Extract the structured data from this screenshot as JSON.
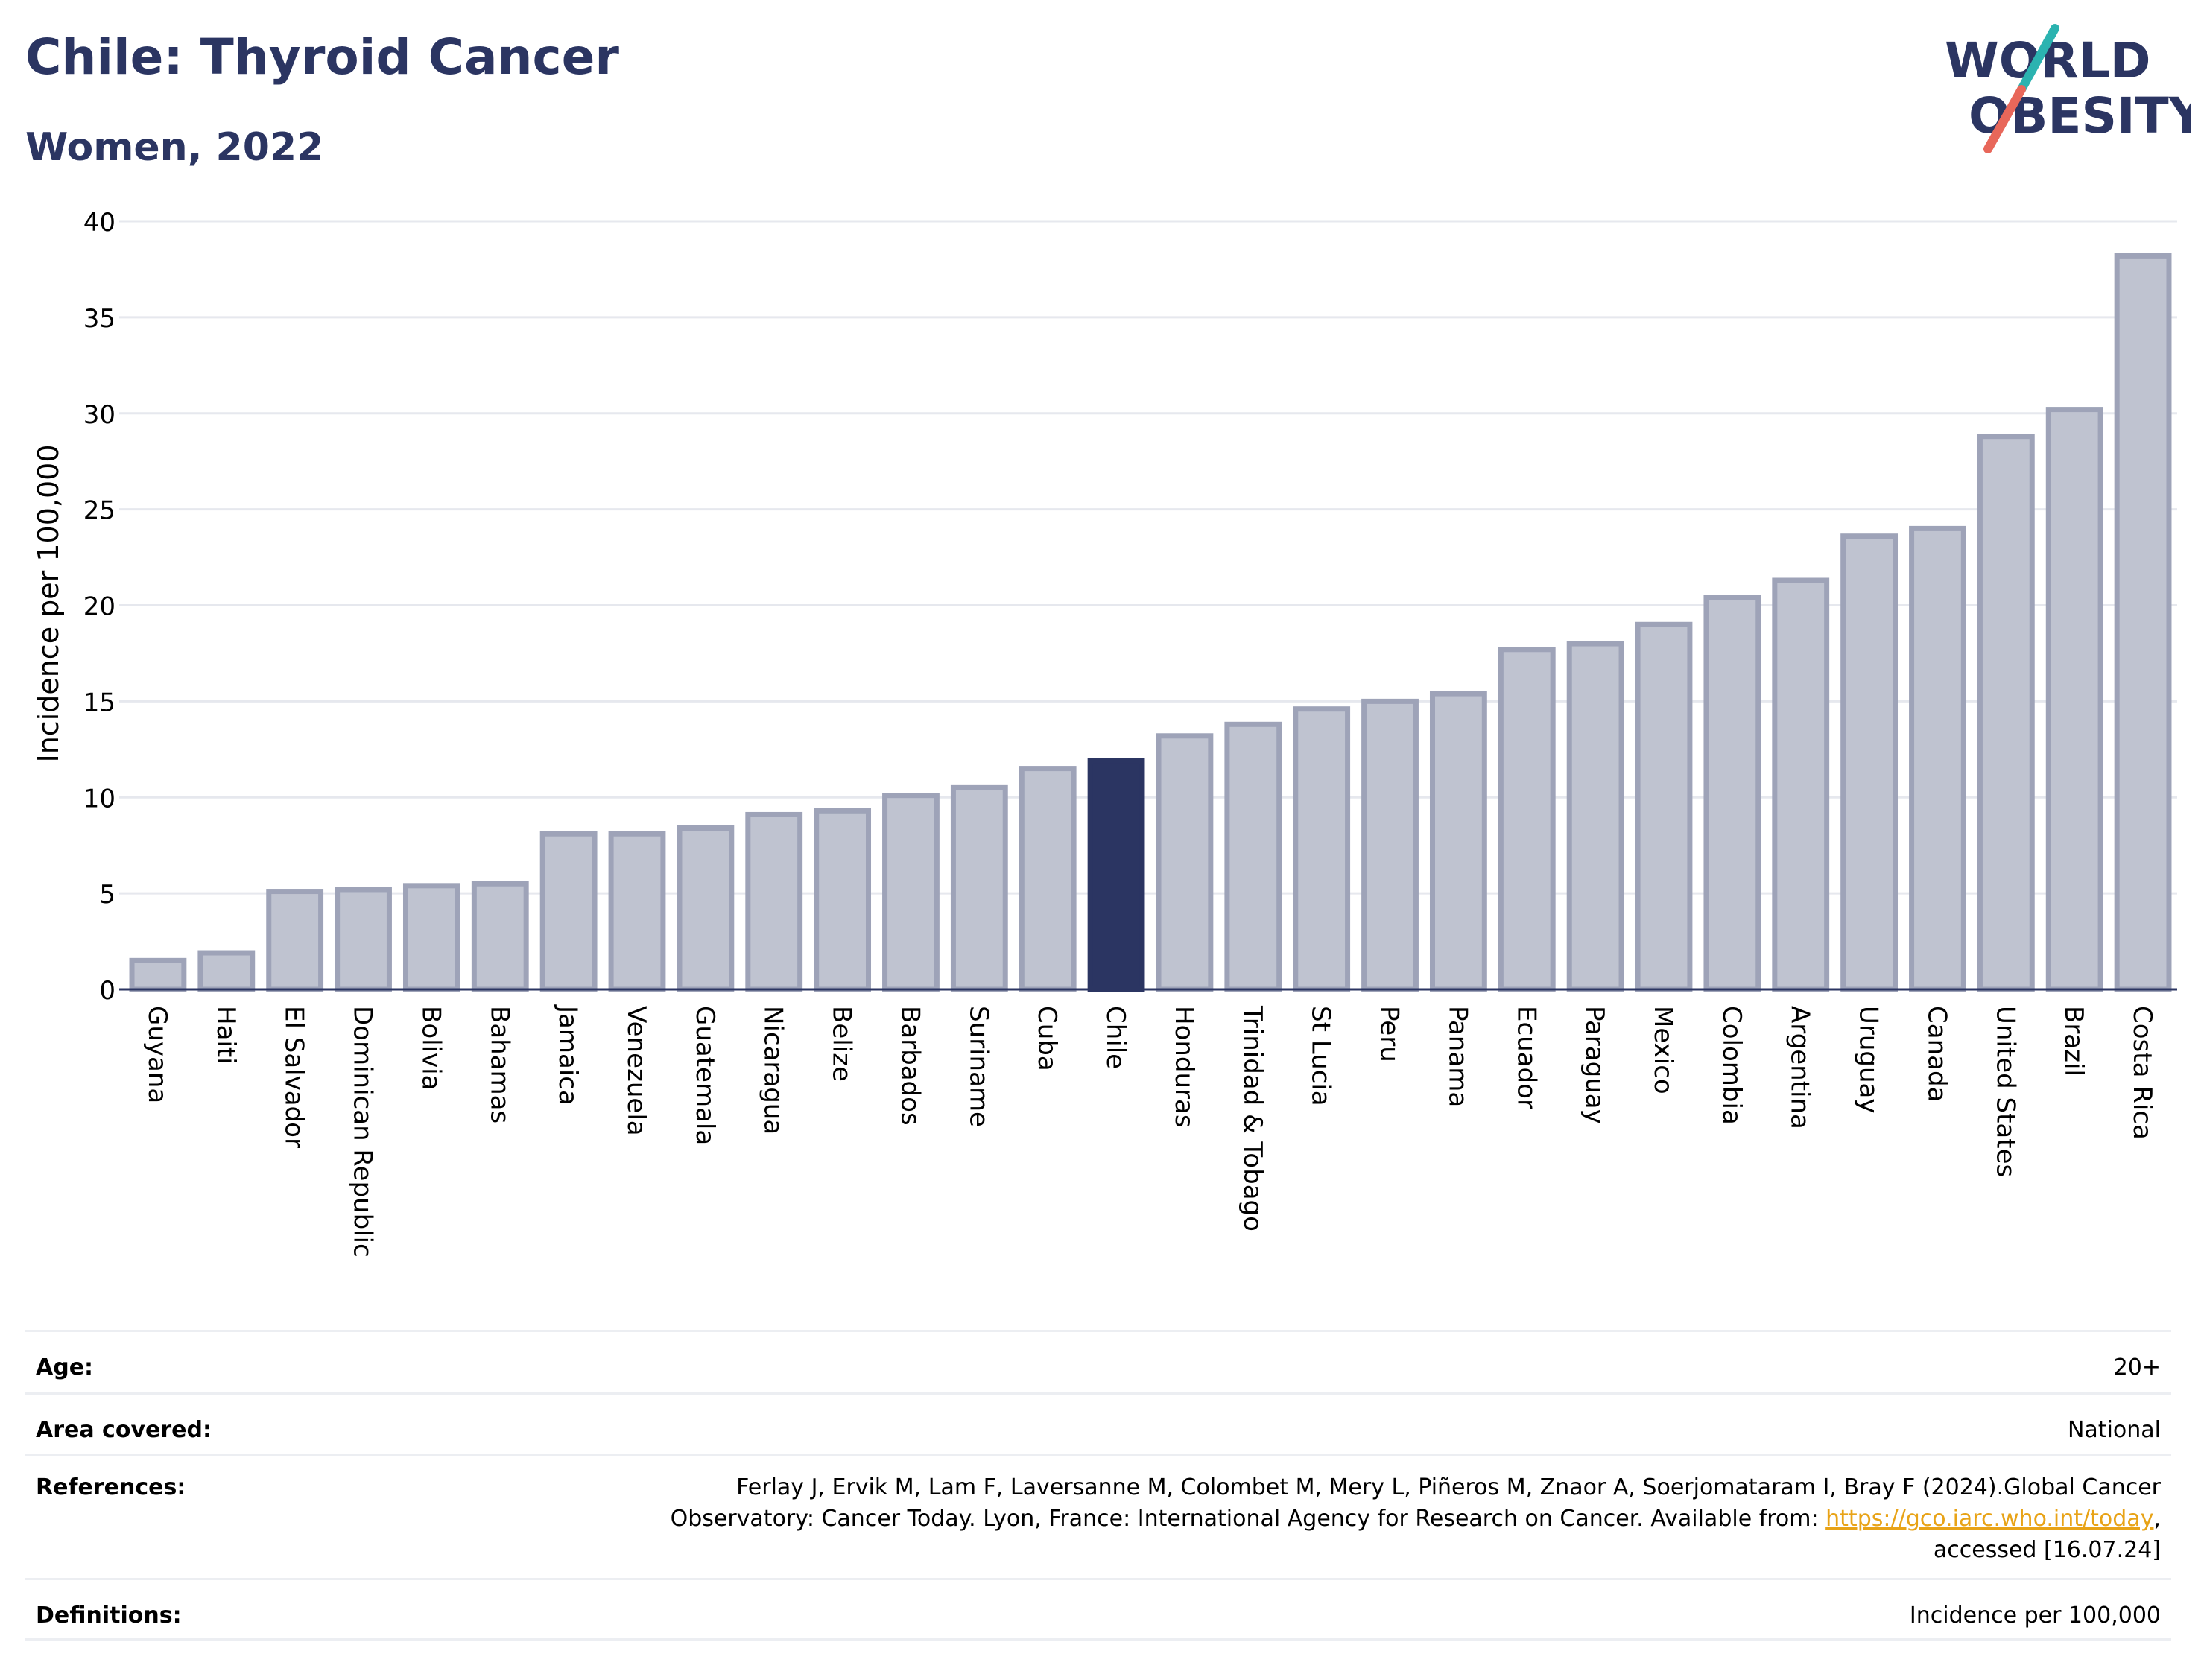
{
  "header": {
    "title": "Chile: Thyroid Cancer",
    "subtitle": "Women, 2022",
    "logo_line1": "WORLD",
    "logo_line2": "OBESITY"
  },
  "colors": {
    "title": "#2b3562",
    "bar_fill": "#bfc3d0",
    "bar_stroke": "#9ea3b8",
    "highlight": "#2b3562",
    "logo_slash_teal": "#2bb3b0",
    "logo_slash_red": "#e8675a",
    "link": "#e8a317"
  },
  "chart_data": {
    "type": "bar",
    "ylabel": "Incidence per 100,000",
    "ylim": [
      0,
      40
    ],
    "yticks": [
      0,
      5,
      10,
      15,
      20,
      25,
      30,
      35,
      40
    ],
    "grid": true,
    "highlight": "Chile",
    "categories": [
      "Guyana",
      "Haiti",
      "El Salvador",
      "Dominican Republic",
      "Bolivia",
      "Bahamas",
      "Jamaica",
      "Venezuela",
      "Guatemala",
      "Nicaragua",
      "Belize",
      "Barbados",
      "Suriname",
      "Cuba",
      "Chile",
      "Honduras",
      "Trinidad & Tobago",
      "St Lucia",
      "Peru",
      "Panama",
      "Ecuador",
      "Paraguay",
      "Mexico",
      "Colombia",
      "Argentina",
      "Uruguay",
      "Canada",
      "United States",
      "Brazil",
      "Costa Rica"
    ],
    "values": [
      1.5,
      1.9,
      5.1,
      5.2,
      5.4,
      5.5,
      8.1,
      8.1,
      8.4,
      9.1,
      9.3,
      10.1,
      10.5,
      11.5,
      11.9,
      13.2,
      13.8,
      14.6,
      15.0,
      15.4,
      17.7,
      18.0,
      19.0,
      20.4,
      21.3,
      23.6,
      24.0,
      28.8,
      30.2,
      38.2
    ]
  },
  "info": {
    "age_label": "Age:",
    "age_value": "20+",
    "area_label": "Area covered:",
    "area_value": "National",
    "references_label": "References:",
    "references_line1": "Ferlay J, Ervik M, Lam F, Laversanne M, Colombet M, Mery L, Piñeros M, Znaor A, Soerjomataram I, Bray F (2024).Global Cancer",
    "references_line2_pre": "Observatory: Cancer Today. Lyon, France: International Agency for Research on Cancer. Available from: ",
    "references_link": "https://gco.iarc.who.int/today",
    "references_line2_post": ",",
    "references_line3": "accessed [16.07.24]",
    "definitions_label": "Definitions:",
    "definitions_value": "Incidence per 100,000"
  }
}
